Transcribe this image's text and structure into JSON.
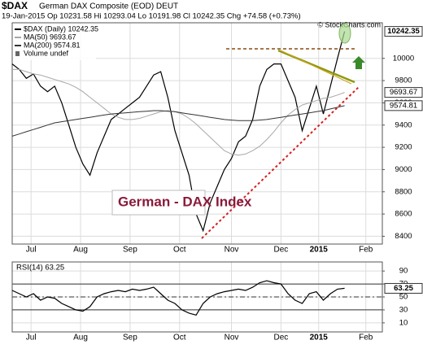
{
  "chart_data": [
    {
      "type": "line",
      "title": "$DAX",
      "subtitle": "German DAX Composite (EOD) DEUT",
      "quote": "19-Jan-2015   Op 10231.58   Hi 10293.04   Lo 10191.98   Cl 10242.35   Chg +74.58 (+0.73%)",
      "credit": "© StockCharts.com",
      "annotation": "German - DAX Index",
      "extra_legend": "Volume undef",
      "x": [
        0,
        3,
        6,
        9,
        12,
        15,
        18,
        21,
        24,
        27,
        30,
        33,
        36,
        39,
        42,
        45,
        48,
        51,
        54,
        57,
        60,
        63,
        66,
        69,
        72,
        75,
        78,
        81,
        84,
        87,
        90,
        93,
        96,
        99,
        102,
        105,
        108,
        111,
        114,
        117,
        120,
        123,
        126,
        129,
        132,
        135,
        138,
        141
      ],
      "series": [
        {
          "name": "$DAX (Daily) 10242.35",
          "color": "#000000",
          "last_label": "10242.35",
          "values": [
            9950,
            9900,
            9820,
            9860,
            9750,
            9700,
            9750,
            9600,
            9400,
            9200,
            9050,
            8950,
            9150,
            9300,
            9450,
            9500,
            9550,
            9600,
            9650,
            9750,
            9850,
            9880,
            9650,
            9350,
            9150,
            8950,
            8600,
            8450,
            8700,
            8850,
            9000,
            9100,
            9250,
            9300,
            9450,
            9750,
            9900,
            9950,
            9950,
            9800,
            9650,
            9350,
            9550,
            9750,
            9500,
            9750,
            10000,
            10242.35
          ]
        },
        {
          "name": "MA(50) 9693.67",
          "color": "#a8a8a8",
          "last_label": "9693.67",
          "values": [
            9900,
            9900,
            9880,
            9860,
            9850,
            9830,
            9810,
            9790,
            9770,
            9740,
            9700,
            9650,
            9600,
            9550,
            9500,
            9470,
            9450,
            9450,
            9460,
            9480,
            9500,
            9520,
            9530,
            9520,
            9500,
            9460,
            9410,
            9350,
            9290,
            9230,
            9170,
            9140,
            9130,
            9140,
            9170,
            9210,
            9270,
            9340,
            9420,
            9490,
            9540,
            9580,
            9600,
            9620,
            9640,
            9650,
            9670,
            9693.67
          ]
        },
        {
          "name": "MA(200) 9574.81",
          "color": "#333333",
          "last_label": "9574.81",
          "values": [
            9300,
            9320,
            9340,
            9360,
            9380,
            9400,
            9420,
            9430,
            9440,
            9450,
            9460,
            9470,
            9480,
            9490,
            9500,
            9505,
            9510,
            9515,
            9520,
            9525,
            9530,
            9530,
            9525,
            9520,
            9510,
            9500,
            9490,
            9480,
            9470,
            9460,
            9450,
            9445,
            9440,
            9440,
            9440,
            9445,
            9450,
            9460,
            9470,
            9480,
            9490,
            9500,
            9510,
            9520,
            9530,
            9545,
            9560,
            9574.81
          ]
        }
      ],
      "xlim": [
        0,
        157
      ],
      "xticks": [
        {
          "value": 8,
          "label": "Jul"
        },
        {
          "value": 29,
          "label": "Aug"
        },
        {
          "value": 50,
          "label": "Sep"
        },
        {
          "value": 71,
          "label": "Oct"
        },
        {
          "value": 93,
          "label": "Nov"
        },
        {
          "value": 114,
          "label": "Dec"
        },
        {
          "value": 130,
          "label": "2015"
        },
        {
          "value": 150,
          "label": "Feb"
        }
      ],
      "ylim": [
        8330,
        10320
      ],
      "yticks": [
        8400,
        8600,
        8800,
        9000,
        9200,
        9400,
        9600,
        9800,
        10000
      ],
      "grid": true
    },
    {
      "type": "line",
      "title": "RSI(14) 63.25",
      "x": [
        0,
        3,
        6,
        9,
        12,
        15,
        18,
        21,
        24,
        27,
        30,
        33,
        36,
        39,
        42,
        45,
        48,
        51,
        54,
        57,
        60,
        63,
        66,
        69,
        72,
        75,
        78,
        81,
        84,
        87,
        90,
        93,
        96,
        99,
        102,
        105,
        108,
        111,
        114,
        117,
        120,
        123,
        126,
        129,
        132,
        135,
        138,
        141
      ],
      "series": [
        {
          "name": "RSI(14)",
          "color": "#000000",
          "last_label": "63.25",
          "values": [
            60,
            55,
            50,
            55,
            45,
            50,
            48,
            40,
            35,
            30,
            28,
            35,
            50,
            55,
            58,
            60,
            58,
            62,
            60,
            62,
            65,
            55,
            45,
            40,
            30,
            25,
            22,
            40,
            50,
            55,
            58,
            60,
            62,
            60,
            65,
            72,
            75,
            72,
            70,
            55,
            45,
            40,
            55,
            58,
            45,
            55,
            62,
            63.25
          ]
        }
      ],
      "xlim": [
        0,
        157
      ],
      "xticks": [
        {
          "value": 8,
          "label": "Jul"
        },
        {
          "value": 29,
          "label": "Aug"
        },
        {
          "value": 50,
          "label": "Sep"
        },
        {
          "value": 71,
          "label": "Oct"
        },
        {
          "value": 93,
          "label": "Nov"
        },
        {
          "value": 114,
          "label": "Dec"
        },
        {
          "value": 130,
          "label": "2015"
        },
        {
          "value": 150,
          "label": "Feb"
        }
      ],
      "ylim": [
        -4,
        104
      ],
      "yticks": [
        10,
        30,
        50,
        70,
        90
      ],
      "levels": [
        30,
        50,
        70
      ],
      "grid": true
    }
  ]
}
